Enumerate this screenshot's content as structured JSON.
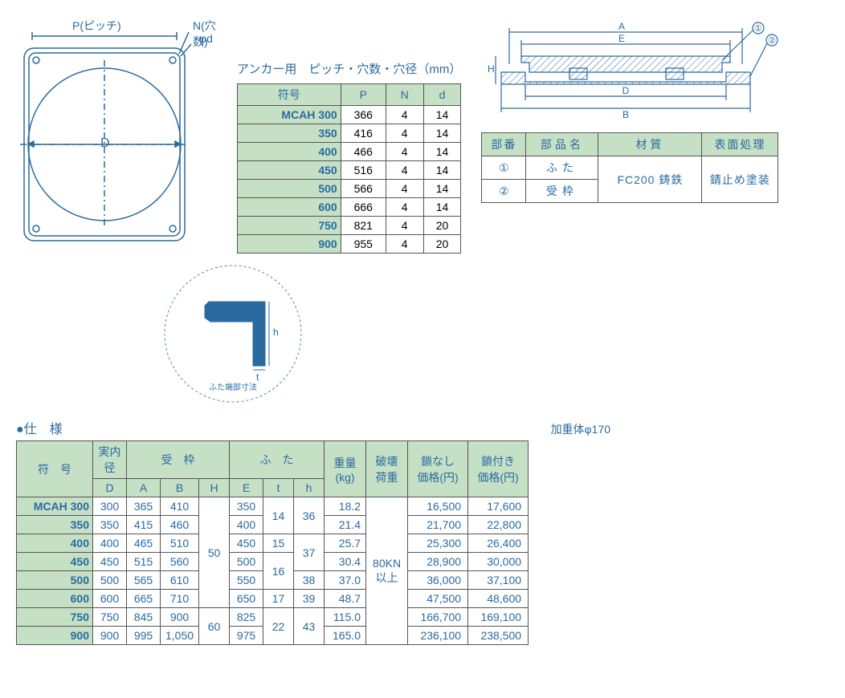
{
  "colors": {
    "text": "#2a6aa0",
    "header_bg": "#c5e0c5",
    "border": "#555555",
    "stroke": "#2a6aa0"
  },
  "top_diagram": {
    "label_P": "P(ピッチ)",
    "label_N": "N(穴数)",
    "label_phi_d": "φd",
    "label_D": "D"
  },
  "anchor": {
    "title": "アンカー用　ピッチ・穴数・穴径（mm）",
    "headers": {
      "code": "符号",
      "P": "P",
      "N": "N",
      "d": "d"
    },
    "first_code_prefix": "MCAH ",
    "rows": [
      {
        "code": "300",
        "P": 366,
        "N": 4,
        "d": 14
      },
      {
        "code": "350",
        "P": 416,
        "N": 4,
        "d": 14
      },
      {
        "code": "400",
        "P": 466,
        "N": 4,
        "d": 14
      },
      {
        "code": "450",
        "P": 516,
        "N": 4,
        "d": 14
      },
      {
        "code": "500",
        "P": 566,
        "N": 4,
        "d": 14
      },
      {
        "code": "600",
        "P": 666,
        "N": 4,
        "d": 14
      },
      {
        "code": "750",
        "P": 821,
        "N": 4,
        "d": 20
      },
      {
        "code": "900",
        "P": 955,
        "N": 4,
        "d": 20
      }
    ]
  },
  "cross_section": {
    "labels": {
      "A": "A",
      "E": "E",
      "H": "H",
      "D": "D",
      "B": "B",
      "c1": "①",
      "c2": "②"
    }
  },
  "parts": {
    "headers": {
      "no": "部番",
      "name": "部品名",
      "material": "材質",
      "surface": "表面処理"
    },
    "rows": [
      {
        "no": "①",
        "name": "ふた"
      },
      {
        "no": "②",
        "name": "受枠"
      }
    ],
    "material": "FC200 鋳鉄",
    "surface": "錆止め塗装"
  },
  "detail": {
    "caption": "ふた端部寸法",
    "label_h": "h",
    "label_t": "t"
  },
  "spec": {
    "title": "●仕　様",
    "weight_note": "加重体φ170",
    "headers": {
      "code": "符　号",
      "inner": "実内径",
      "frame": "受　枠",
      "lid": "ふ　た",
      "weight": "重量\n(kg)",
      "break": "破壊\n荷重",
      "price_no_chain": "鎖なし\n価格(円)",
      "price_chain": "鎖付き\n価格(円)",
      "D": "D",
      "A": "A",
      "B": "B",
      "H": "H",
      "E": "E",
      "t": "t",
      "h": "h"
    },
    "first_code_prefix": "MCAH ",
    "break_load": "80KN\n以上",
    "rows": [
      {
        "code": "300",
        "D": 300,
        "A": 365,
        "B": 410,
        "E": 350,
        "weight": "18.2",
        "p1": "16,500",
        "p2": "17,600"
      },
      {
        "code": "350",
        "D": 350,
        "A": 415,
        "B": 460,
        "E": 400,
        "weight": "21.4",
        "p1": "21,700",
        "p2": "22,800"
      },
      {
        "code": "400",
        "D": 400,
        "A": 465,
        "B": 510,
        "E": 450,
        "weight": "25.7",
        "p1": "25,300",
        "p2": "26,400"
      },
      {
        "code": "450",
        "D": 450,
        "A": 515,
        "B": 560,
        "E": 500,
        "weight": "30.4",
        "p1": "28,900",
        "p2": "30,000"
      },
      {
        "code": "500",
        "D": 500,
        "A": 565,
        "B": 610,
        "E": 550,
        "weight": "37.0",
        "p1": "36,000",
        "p2": "37,100"
      },
      {
        "code": "600",
        "D": 600,
        "A": 665,
        "B": 710,
        "E": 650,
        "weight": "48.7",
        "p1": "47,500",
        "p2": "48,600"
      },
      {
        "code": "750",
        "D": 750,
        "A": 845,
        "B": 900,
        "E": 825,
        "weight": "115.0",
        "p1": "166,700",
        "p2": "169,100"
      },
      {
        "code": "900",
        "D": 900,
        "A": 995,
        "B": "1,050",
        "E": 975,
        "weight": "165.0",
        "p1": "236,100",
        "p2": "238,500"
      }
    ],
    "H_groups": [
      {
        "span": 6,
        "val": 50
      },
      {
        "span": 2,
        "val": 60
      }
    ],
    "t_groups": [
      {
        "span": 2,
        "val": 14
      },
      {
        "span": 1,
        "val": 15
      },
      {
        "span": 2,
        "val": 16
      },
      {
        "span": 1,
        "val": 17
      },
      {
        "span": 2,
        "val": 22
      }
    ],
    "h_groups": [
      {
        "span": 2,
        "val": 36
      },
      {
        "span": 2,
        "val": 37
      },
      {
        "span": 1,
        "val": 38
      },
      {
        "span": 1,
        "val": 39
      },
      {
        "span": 2,
        "val": 43
      }
    ]
  }
}
